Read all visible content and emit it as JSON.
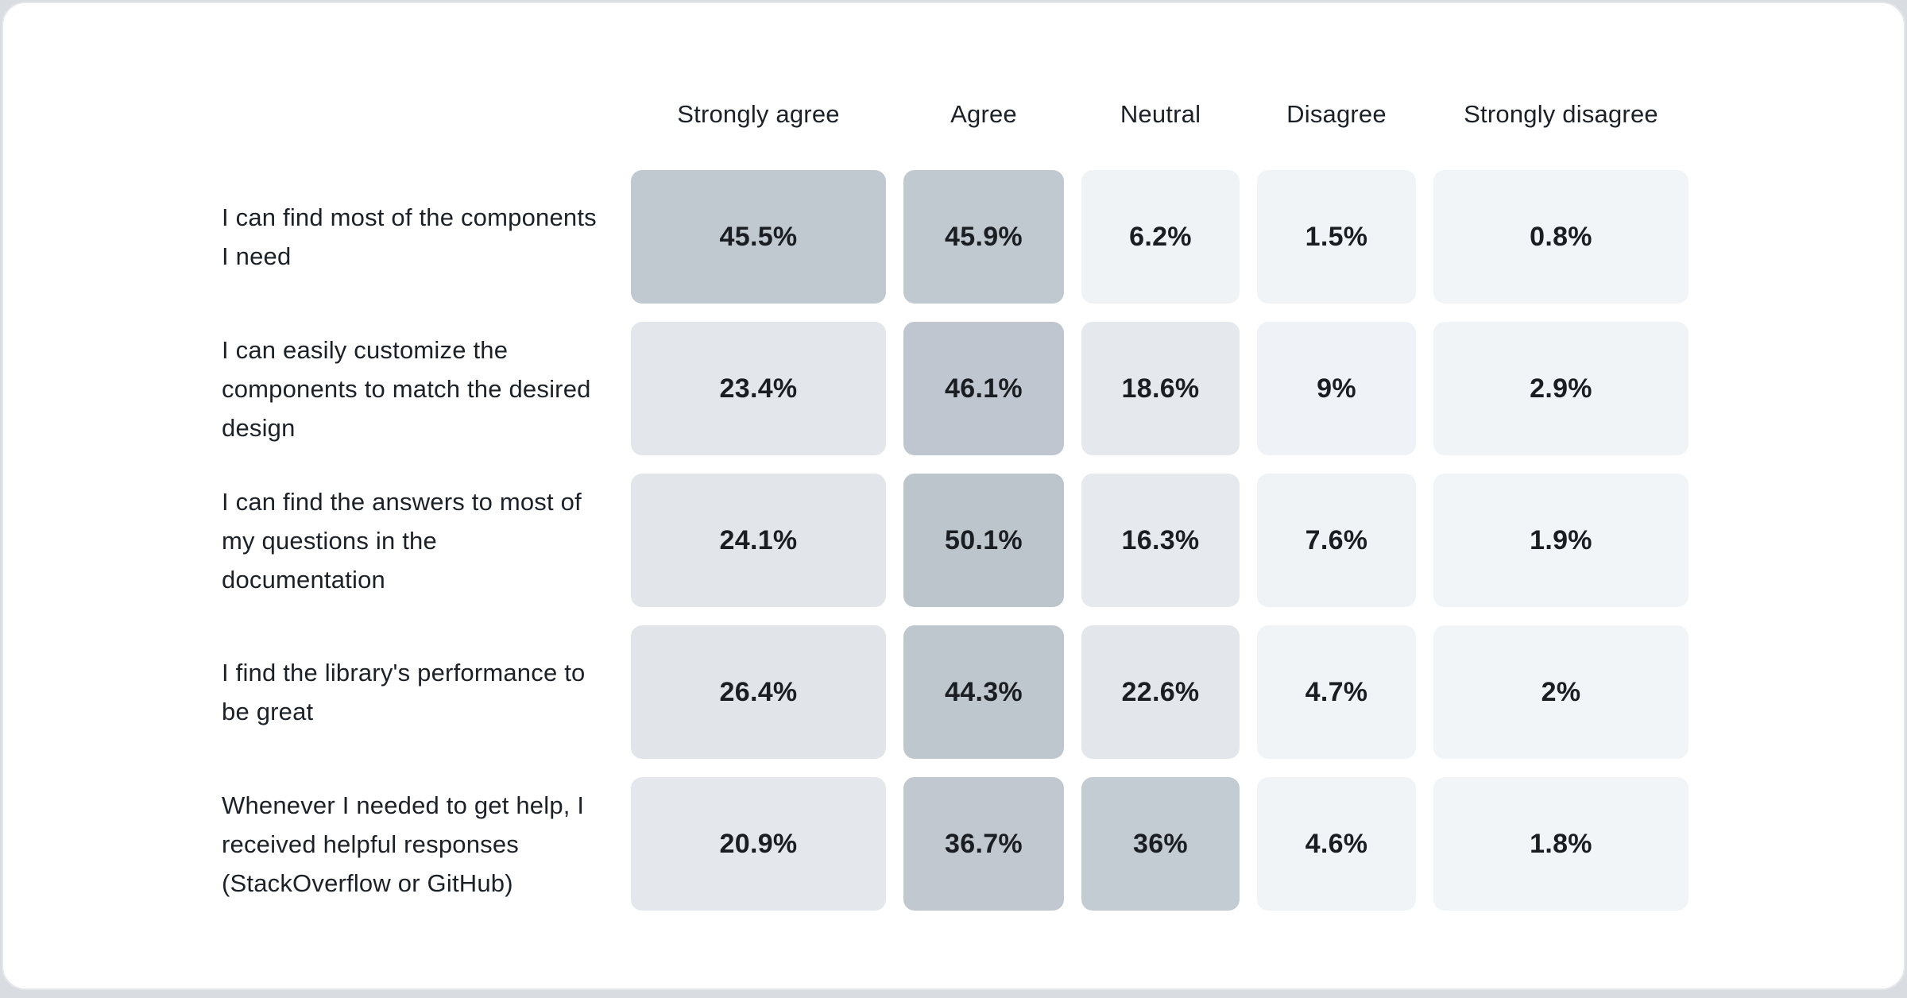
{
  "page": {
    "background_color": "#d9dce0",
    "card_background": "#ffffff",
    "card_border_color": "#e3e6ea",
    "text_color": "#1c2128",
    "value_text_color": "#1a1d21"
  },
  "chart_data": {
    "type": "heatmap",
    "title": "",
    "legend_position": "none",
    "grid": false,
    "columns": [
      "Strongly agree",
      "Agree",
      "Neutral",
      "Disagree",
      "Strongly disagree"
    ],
    "color_scale": {
      "min_color": "#f2f5f8",
      "max_color": "#bcc4cc",
      "domain": [
        0,
        50.1
      ],
      "note": "higher percentage = darker slate-blue cell"
    },
    "rows": [
      {
        "label": "I can find most of the components I need",
        "cells": [
          {
            "text": "45.5%",
            "value": 45.5,
            "color": "#c0c8d0"
          },
          {
            "text": "45.9%",
            "value": 45.9,
            "color": "#c0c8d0"
          },
          {
            "text": "6.2%",
            "value": 6.2,
            "color": "#f0f3f6"
          },
          {
            "text": "1.5%",
            "value": 1.5,
            "color": "#f1f4f7"
          },
          {
            "text": "0.8%",
            "value": 0.8,
            "color": "#f2f5f8"
          }
        ]
      },
      {
        "label": "I can easily customize the components to match the desired design",
        "cells": [
          {
            "text": "23.4%",
            "value": 23.4,
            "color": "#e3e7eb"
          },
          {
            "text": "46.1%",
            "value": 46.1,
            "color": "#bfc6cf"
          },
          {
            "text": "18.6%",
            "value": 18.6,
            "color": "#e5e8ed"
          },
          {
            "text": "9%",
            "value": 9,
            "color": "#eff2f6"
          },
          {
            "text": "2.9%",
            "value": 2.9,
            "color": "#f1f4f7"
          }
        ]
      },
      {
        "label": "I can find the answers to most of my questions in the documentation",
        "cells": [
          {
            "text": "24.1%",
            "value": 24.1,
            "color": "#e2e6eb"
          },
          {
            "text": "50.1%",
            "value": 50.1,
            "color": "#bcc4cc"
          },
          {
            "text": "16.3%",
            "value": 16.3,
            "color": "#e6e9ed"
          },
          {
            "text": "7.6%",
            "value": 7.6,
            "color": "#f0f3f6"
          },
          {
            "text": "1.9%",
            "value": 1.9,
            "color": "#f2f5f8"
          }
        ]
      },
      {
        "label": "I find the library's performance to be great",
        "cells": [
          {
            "text": "26.4%",
            "value": 26.4,
            "color": "#e1e5ea"
          },
          {
            "text": "44.3%",
            "value": 44.3,
            "color": "#bec6ce"
          },
          {
            "text": "22.6%",
            "value": 22.6,
            "color": "#e3e7ec"
          },
          {
            "text": "4.7%",
            "value": 4.7,
            "color": "#f1f4f7"
          },
          {
            "text": "2%",
            "value": 2,
            "color": "#f2f5f8"
          }
        ]
      },
      {
        "label": "Whenever I needed to get help, I received helpful responses (StackOverflow or GitHub)",
        "cells": [
          {
            "text": "20.9%",
            "value": 20.9,
            "color": "#e4e8ec"
          },
          {
            "text": "36.7%",
            "value": 36.7,
            "color": "#c1c8d0"
          },
          {
            "text": "36%",
            "value": 36,
            "color": "#c3cbd3"
          },
          {
            "text": "4.6%",
            "value": 4.6,
            "color": "#f1f4f7"
          },
          {
            "text": "1.8%",
            "value": 1.8,
            "color": "#f2f5f8"
          }
        ]
      }
    ]
  }
}
